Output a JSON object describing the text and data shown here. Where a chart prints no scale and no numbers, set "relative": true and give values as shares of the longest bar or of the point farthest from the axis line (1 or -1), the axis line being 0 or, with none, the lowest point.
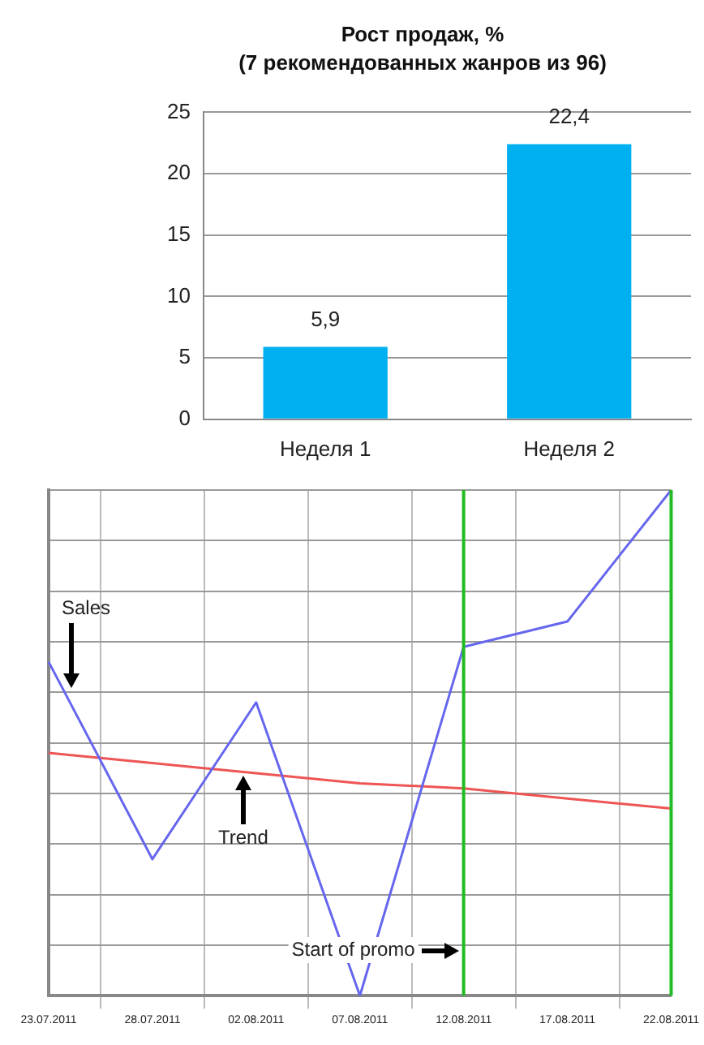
{
  "chart_data": [
    {
      "type": "bar",
      "title": "Рост продаж, %",
      "subtitle": "(7 рекомендованных жанров из 96)",
      "categories": [
        "Неделя 1",
        "Неделя 2"
      ],
      "values": [
        5.9,
        22.4
      ],
      "value_labels": [
        "5,9",
        "22,4"
      ],
      "color": "#00b0f0",
      "ylim": [
        0,
        25
      ],
      "yticks": [
        0,
        5,
        10,
        15,
        20,
        25
      ],
      "grid": "y",
      "legend": false
    },
    {
      "type": "line",
      "relative": true,
      "categories": [
        "23.07.2011",
        "28.07.2011",
        "02.08.2011",
        "07.08.2011",
        "12.08.2011",
        "17.08.2011",
        "22.08.2011"
      ],
      "series": [
        {
          "color": "#6666ee",
          "values": [
            0.66,
            0.27,
            0.58,
            0,
            0.69,
            0.74,
            1
          ]
        },
        {
          "type": "line",
          "color": "#ee5555",
          "values": [
            0.48,
            0.46,
            0.44,
            0.42,
            0.41,
            0.39,
            0.37
          ]
        }
      ],
      "ref_lines": [
        {
          "axis": "x",
          "value": "12.08.2011",
          "color": "#22bb22"
        },
        {
          "axis": "x",
          "value": "22.08.2011",
          "color": "#22bb22"
        }
      ],
      "annotations": [
        {
          "text": "Sales",
          "x": "23.07.2011",
          "y": 0.66
        },
        {
          "text": "Trend",
          "x": "02.08.2011",
          "y": 0.44
        },
        {
          "text": "Start of promo",
          "x": "12.08.2011",
          "y": 0.09
        }
      ],
      "grid": true,
      "legend": false,
      "marker": "none",
      "tick_labels": "x"
    }
  ]
}
